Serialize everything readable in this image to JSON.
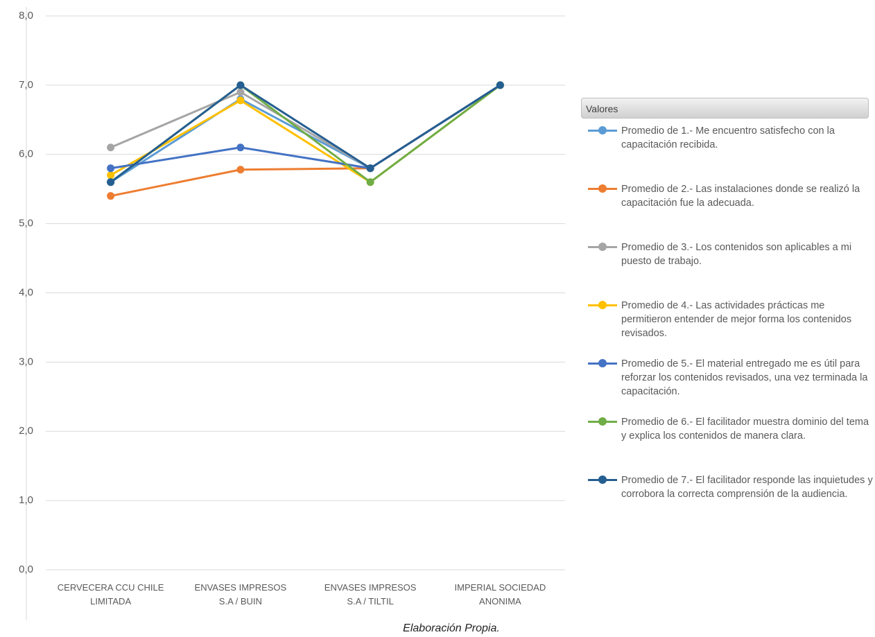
{
  "chart_data": {
    "type": "line",
    "categories": [
      "CERVECERA CCU CHILE LIMITADA",
      "ENVASES IMPRESOS S.A / BUIN",
      "ENVASES IMPRESOS S.A / TILTIL",
      "IMPERIAL SOCIEDAD ANONIMA"
    ],
    "series": [
      {
        "name": "Promedio de 1.- Me encuentro satisfecho con la capacitación recibida.",
        "color": "#5b9bd5",
        "values": [
          5.6,
          6.8,
          5.8,
          7.0
        ]
      },
      {
        "name": "Promedio de 2.- Las instalaciones donde se realizó la capacitación fue la adecuada.",
        "color": "#ed7d31",
        "values": [
          5.4,
          5.78,
          5.8,
          7.0
        ]
      },
      {
        "name": "Promedio de 3.- Los contenidos son aplicables a mi puesto de trabajo.",
        "color": "#a5a5a5",
        "values": [
          6.1,
          6.9,
          5.8,
          7.0
        ]
      },
      {
        "name": "Promedio de 4.- Las actividades prácticas me permitieron entender de mejor forma los contenidos revisados.",
        "color": "#ffc000",
        "values": [
          5.7,
          6.78,
          5.6,
          7.0
        ]
      },
      {
        "name": "Promedio de 5.- El material entregado me es útil para reforzar los contenidos revisados, una vez terminada la capacitación.",
        "color": "#4472c4",
        "values": [
          5.8,
          6.1,
          5.8,
          7.0
        ]
      },
      {
        "name": "Promedio de 6.- El facilitador muestra dominio del tema y explica los contenidos de manera clara.",
        "color": "#70ad47",
        "values": [
          5.6,
          7.0,
          5.6,
          7.0
        ]
      },
      {
        "name": "Promedio de 7.- El facilitador responde las inquietudes y corrobora la correcta comprensión de la audiencia.",
        "color": "#255e91",
        "values": [
          5.6,
          7.0,
          5.8,
          7.0
        ]
      }
    ],
    "ylim": [
      0,
      8
    ],
    "yticks": [
      {
        "value": 0,
        "label": "0,0"
      },
      {
        "value": 1,
        "label": "1,0"
      },
      {
        "value": 2,
        "label": "2,0"
      },
      {
        "value": 3,
        "label": "3,0"
      },
      {
        "value": 4,
        "label": "4,0"
      },
      {
        "value": 5,
        "label": "5,0"
      },
      {
        "value": 6,
        "label": "6,0"
      },
      {
        "value": 7,
        "label": "7,0"
      },
      {
        "value": 8,
        "label": "8,0"
      }
    ],
    "grid": true,
    "legend_title": "Valores",
    "legend": "right"
  },
  "footnote": "Elaboración Propia."
}
